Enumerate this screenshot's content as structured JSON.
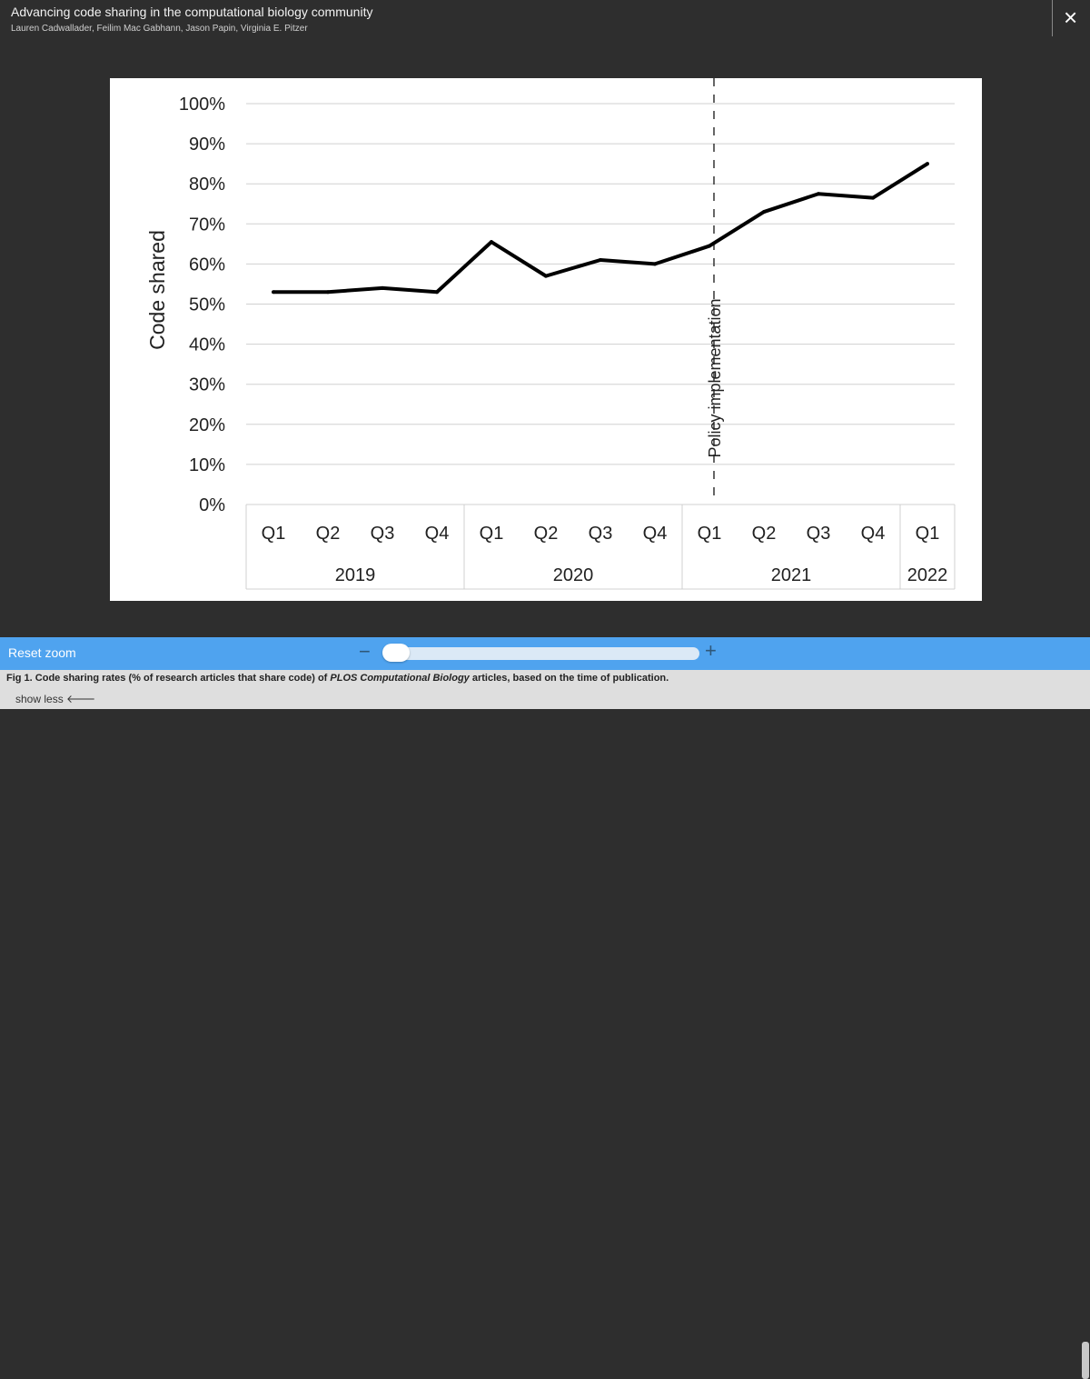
{
  "header": {
    "title": "Advancing code sharing in the computational biology community",
    "authors": "Lauren Cadwallader,  Feilim Mac Gabhann,  Jason Papin,  Virginia E. Pitzer",
    "close_icon": "×"
  },
  "chart_data": {
    "type": "line",
    "ylabel": "Code shared",
    "ylim": [
      0,
      100
    ],
    "y_ticks": [
      "0%",
      "10%",
      "20%",
      "30%",
      "40%",
      "50%",
      "60%",
      "70%",
      "80%",
      "90%",
      "100%"
    ],
    "x_quarters": [
      "Q1",
      "Q2",
      "Q3",
      "Q4",
      "Q1",
      "Q2",
      "Q3",
      "Q4",
      "Q1",
      "Q2",
      "Q3",
      "Q4",
      "Q1"
    ],
    "x_years": [
      {
        "label": "2019",
        "start": 0,
        "end": 3
      },
      {
        "label": "2020",
        "start": 4,
        "end": 7
      },
      {
        "label": "2021",
        "start": 8,
        "end": 11
      },
      {
        "label": "2022",
        "start": 12,
        "end": 12
      }
    ],
    "series": [
      {
        "name": "Code shared",
        "values": [
          53,
          53,
          54,
          53,
          65.5,
          57,
          61,
          60,
          64.5,
          73,
          77.5,
          76.5,
          85
        ]
      }
    ],
    "annotation": {
      "text": "Policy implementation",
      "x_index": 8
    },
    "grid": true
  },
  "zoom": {
    "reset_label": "Reset zoom",
    "minus_label": "−",
    "plus_label": "+",
    "level": 0
  },
  "caption": {
    "prefix": "Fig 1. Code sharing rates (% of research articles that share code) of ",
    "journal": "PLOS Computational Biology",
    "suffix": " articles, based on the time of publication.",
    "show_less": "show less 🡐"
  }
}
